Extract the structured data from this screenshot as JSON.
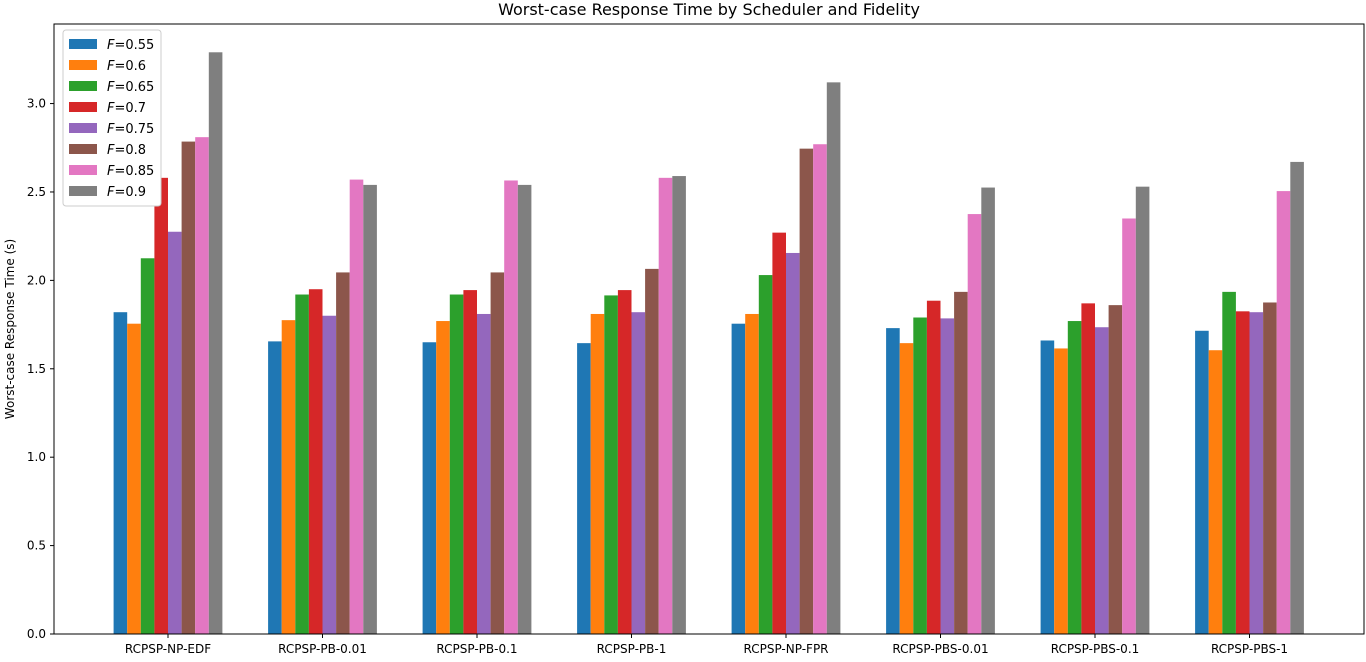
{
  "chart_data": {
    "type": "bar",
    "title": "Worst-case Response Time by Scheduler and Fidelity",
    "xlabel": "",
    "ylabel": "Worst-case Response Time (s)",
    "ylim": [
      0,
      3.45
    ],
    "yticks": [
      "0.0",
      "0.5",
      "1.0",
      "1.5",
      "2.0",
      "2.5",
      "3.0"
    ],
    "grid": false,
    "legend_position": "top-left",
    "categories": [
      "RCPSP-NP-EDF",
      "RCPSP-PB-0.01",
      "RCPSP-PB-0.1",
      "RCPSP-PB-1",
      "RCPSP-NP-FPR",
      "RCPSP-PBS-0.01",
      "RCPSP-PBS-0.1",
      "RCPSP-PBS-1"
    ],
    "series": [
      {
        "name": "F=0.55",
        "color": "#1f77b4",
        "values": [
          1.82,
          1.655,
          1.65,
          1.645,
          1.755,
          1.73,
          1.66,
          1.715
        ]
      },
      {
        "name": "F=0.6",
        "color": "#ff7f0e",
        "values": [
          1.755,
          1.775,
          1.77,
          1.81,
          1.81,
          1.645,
          1.615,
          1.605
        ]
      },
      {
        "name": "F=0.65",
        "color": "#2ca02c",
        "values": [
          2.125,
          1.92,
          1.92,
          1.915,
          2.03,
          1.79,
          1.77,
          1.935
        ]
      },
      {
        "name": "F=0.7",
        "color": "#d62728",
        "values": [
          2.58,
          1.95,
          1.945,
          1.945,
          2.27,
          1.885,
          1.87,
          1.825
        ]
      },
      {
        "name": "F=0.75",
        "color": "#9467bd",
        "values": [
          2.275,
          1.8,
          1.81,
          1.82,
          2.155,
          1.785,
          1.735,
          1.82
        ]
      },
      {
        "name": "F=0.8",
        "color": "#8c564b",
        "values": [
          2.785,
          2.045,
          2.045,
          2.065,
          2.745,
          1.935,
          1.86,
          1.875
        ]
      },
      {
        "name": "F=0.85",
        "color": "#e377c2",
        "values": [
          2.81,
          2.57,
          2.565,
          2.58,
          2.77,
          2.375,
          2.35,
          2.505
        ]
      },
      {
        "name": "F=0.9",
        "color": "#7f7f7f",
        "values": [
          3.29,
          2.54,
          2.54,
          2.59,
          3.12,
          2.525,
          2.53,
          2.67
        ]
      }
    ]
  }
}
